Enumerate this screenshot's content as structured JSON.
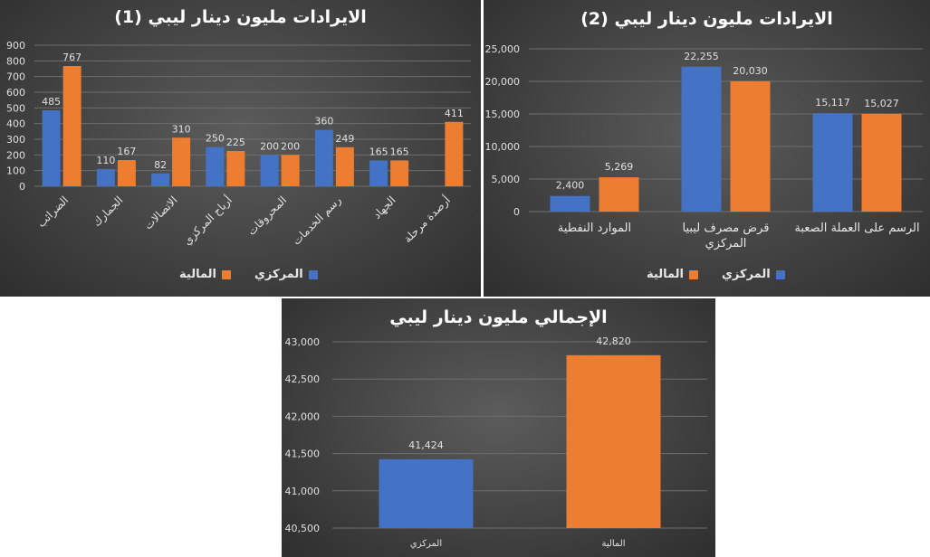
{
  "colors": {
    "blue": "#4472C4",
    "orange": "#ED7D31"
  },
  "charts": [
    {
      "title": "الايرادات مليون دينار ليبي (1)",
      "legend": {
        "s0": "المركزي",
        "s1": "المالية"
      }
    },
    {
      "title": "الايرادات مليون دينار ليبي (2)",
      "legend": {
        "s0": "المركزي",
        "s1": "المالية"
      }
    },
    {
      "title": "الإجمالي مليون دينار ليبي"
    }
  ],
  "chart_data": [
    {
      "type": "bar",
      "title": "الايرادات مليون دينار ليبي (1)",
      "categories": [
        "الضرائب",
        "الجمارك",
        "الاتصالات",
        "أرباح المركزي",
        "المحروقات",
        "رسم الخدمات",
        "الجهاد",
        "أرصدة مرحلة"
      ],
      "series": [
        {
          "name": "المركزي",
          "values": [
            485,
            110,
            82,
            250,
            200,
            360,
            165,
            null
          ]
        },
        {
          "name": "المالية",
          "values": [
            767,
            167,
            310,
            225,
            200,
            249,
            165,
            411
          ]
        }
      ],
      "ylim": [
        0,
        900
      ],
      "yticks": [
        "0",
        "100",
        "200",
        "300",
        "400",
        "500",
        "600",
        "700",
        "800",
        "900"
      ],
      "grid": true,
      "legend_position": "bottom"
    },
    {
      "type": "bar",
      "title": "الايرادات مليون دينار ليبي (2)",
      "categories": [
        "الموارد النفطية",
        "قرض مصرف ليبيا المركزي",
        "الرسم على العملة الصعبة"
      ],
      "series": [
        {
          "name": "المركزي",
          "values": [
            2400,
            22255,
            15117
          ]
        },
        {
          "name": "المالية",
          "values": [
            5269,
            20030,
            15027
          ]
        }
      ],
      "data_labels": [
        [
          "2,400",
          "22,255",
          "15,117"
        ],
        [
          "5,269",
          "20,030",
          "15,027"
        ]
      ],
      "ylim": [
        0,
        25000
      ],
      "yticks": [
        "0",
        "5,000",
        "10,000",
        "15,000",
        "20,000",
        "25,000"
      ],
      "grid": true,
      "legend_position": "bottom"
    },
    {
      "type": "bar",
      "title": "الإجمالي مليون دينار ليبي",
      "categories": [
        "المركزي",
        "المالية"
      ],
      "values": [
        41424,
        42820
      ],
      "data_labels": [
        "41,424",
        "42,820"
      ],
      "ylim": [
        40500,
        43000
      ],
      "yticks": [
        "40,500",
        "41,000",
        "41,500",
        "42,000",
        "42,500",
        "43,000"
      ],
      "grid": true
    }
  ]
}
